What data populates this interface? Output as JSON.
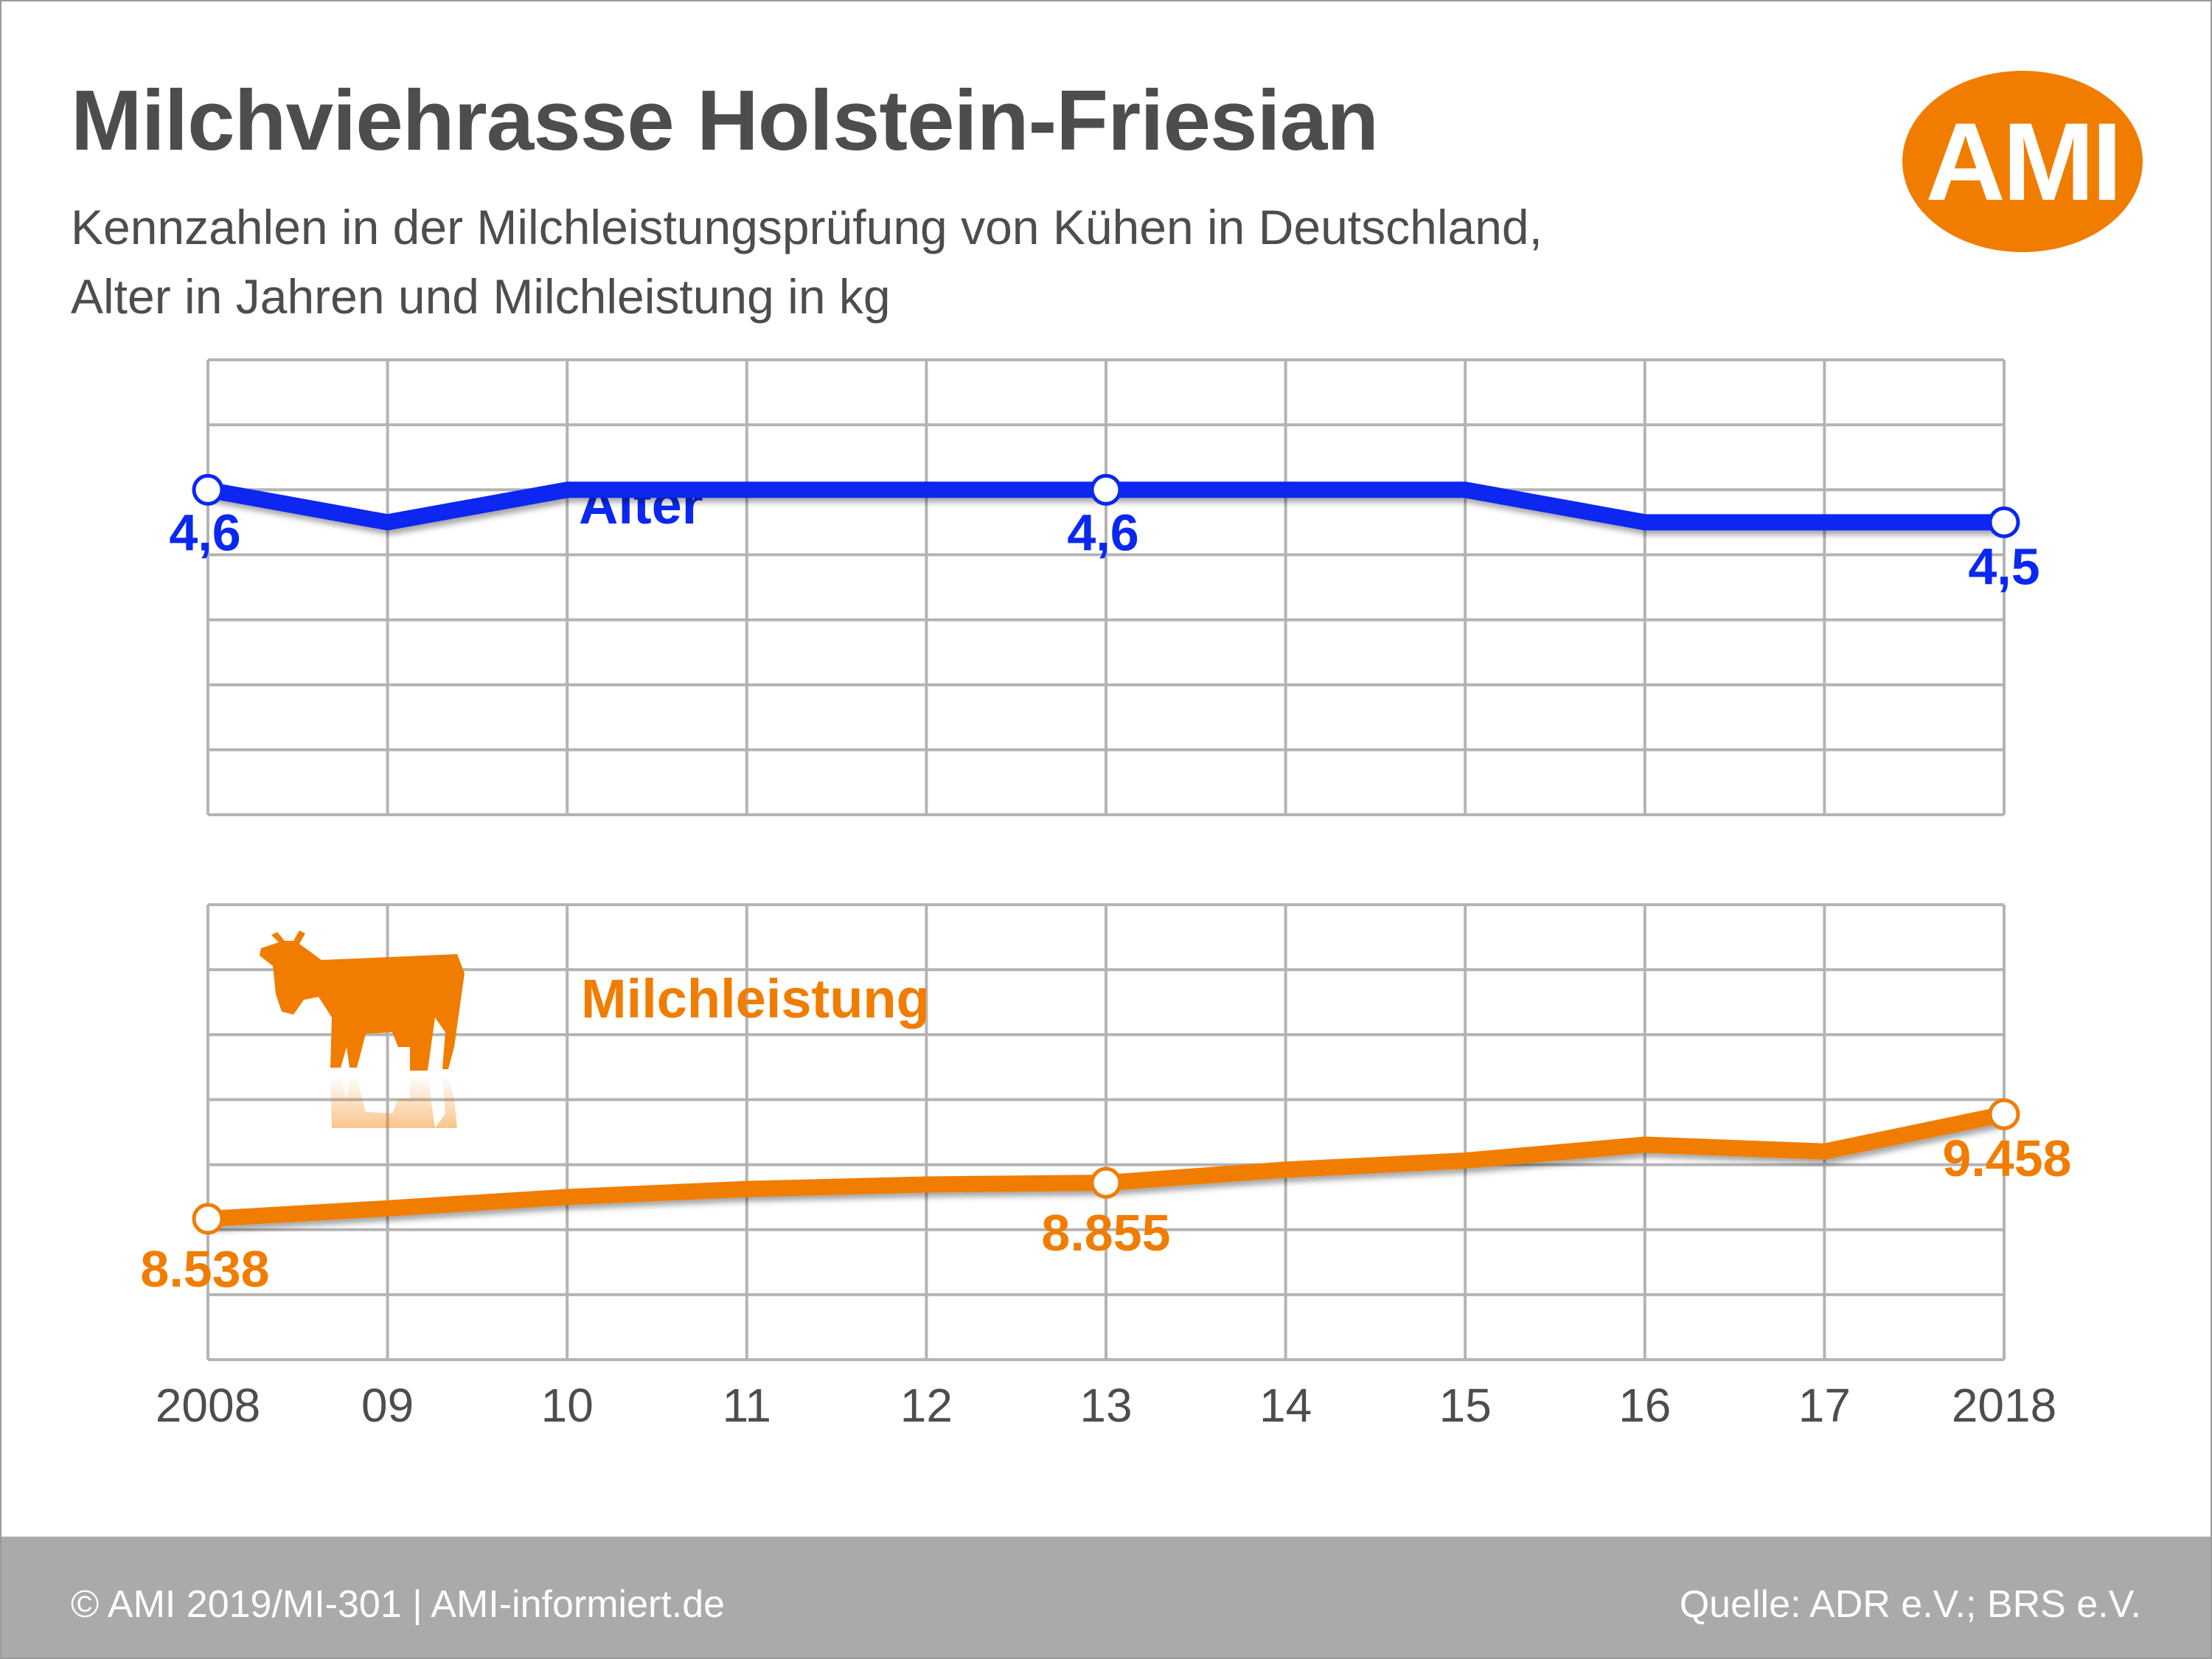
{
  "title": "Milchviehrasse Holstein-Friesian",
  "subtitle_line1": "Kennzahlen in der Milchleistungsprüfung von Kühen in Deutschland,",
  "subtitle_line2": "Alter in Jahren und Milchleistung in kg",
  "logo_text": "AMI",
  "footer": {
    "left": "© AMI 2019/MI-301 | AMI-informiert.de",
    "right": "Quelle: ADR e.V.; BRS e.V."
  },
  "colors": {
    "alter": "#0a28f0",
    "milch": "#f07d00",
    "grid": "#b4b4b4",
    "text": "#4d4d4d"
  },
  "chart_data": [
    {
      "type": "line",
      "x": [
        "2008",
        "09",
        "10",
        "11",
        "12",
        "13",
        "14",
        "15",
        "16",
        "17",
        "2018"
      ],
      "series": [
        {
          "name": "Alter",
          "values": [
            4.6,
            4.5,
            4.6,
            4.6,
            4.6,
            4.6,
            4.6,
            4.6,
            4.5,
            4.5,
            4.5
          ],
          "labels": [
            {
              "index": 0,
              "text": "4,6"
            },
            {
              "index": 5,
              "text": "4,6"
            },
            {
              "index": 10,
              "text": "4,5"
            }
          ]
        }
      ],
      "markers_at": [
        0,
        5,
        10
      ],
      "ylim": [
        3.6,
        5.0
      ],
      "grid": true
    },
    {
      "type": "line",
      "x": [
        "2008",
        "09",
        "10",
        "11",
        "12",
        "13",
        "14",
        "15",
        "16",
        "17",
        "2018"
      ],
      "series": [
        {
          "name": "Milchleistung",
          "values": [
            8538,
            8630,
            8730,
            8800,
            8840,
            8855,
            8970,
            9050,
            9190,
            9130,
            9458
          ],
          "labels": [
            {
              "index": 0,
              "text": "8.538"
            },
            {
              "index": 5,
              "text": "8.855"
            },
            {
              "index": 10,
              "text": "9.458"
            }
          ]
        }
      ],
      "markers_at": [
        0,
        5,
        10
      ],
      "ylim": [
        7300,
        11300
      ],
      "grid": true
    }
  ]
}
